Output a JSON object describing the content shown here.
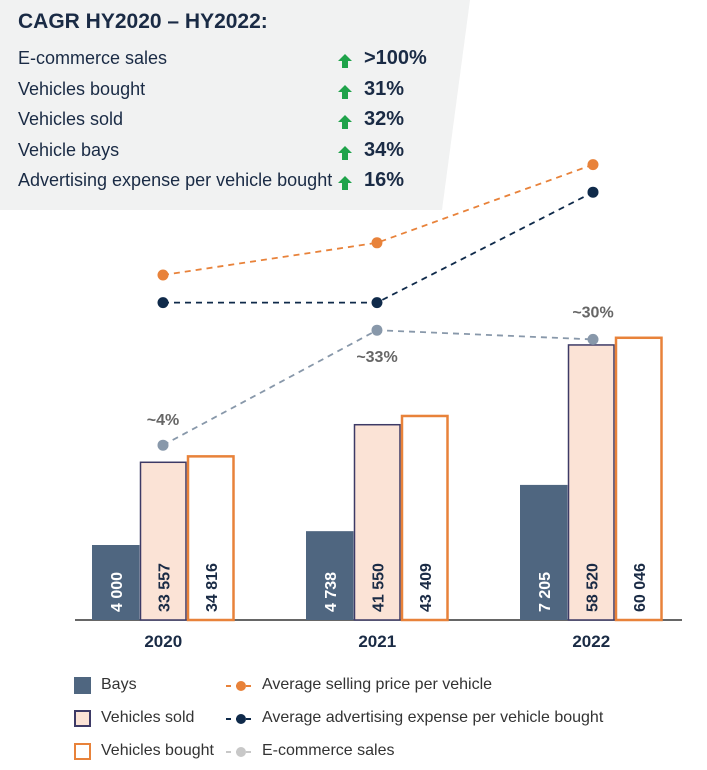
{
  "cagr_box": {
    "title": "CAGR HY2020 – HY2022:",
    "rows": [
      {
        "label": "E-commerce sales",
        "value": ">100%"
      },
      {
        "label": "Vehicles bought",
        "value": "31%"
      },
      {
        "label": "Vehicles sold",
        "value": "32%"
      },
      {
        "label": "Vehicle bays",
        "value": "34%"
      },
      {
        "label": "Advertising expense per vehicle bought",
        "value": "16%"
      }
    ]
  },
  "colors": {
    "bays": "#4f6680",
    "sold_fill": "#fbe3d6",
    "sold_border": "#3d3a66",
    "bought_border": "#e8823a",
    "orange": "#e8823a",
    "navy": "#0f2a4a",
    "gray": "#8898aa",
    "green": "#1fa34a"
  },
  "chart_data": {
    "type": "bar",
    "categories": [
      "2020",
      "2021",
      "2022"
    ],
    "series": [
      {
        "name": "Bays",
        "values": [
          4000,
          4738,
          7205
        ],
        "labels": [
          "4 000",
          "4 738",
          "7 205"
        ]
      },
      {
        "name": "Vehicles sold",
        "values": [
          33557,
          41550,
          58520
        ],
        "labels": [
          "33 557",
          "41 550",
          "58 520"
        ]
      },
      {
        "name": "Vehicles bought",
        "values": [
          34816,
          43409,
          60046
        ],
        "labels": [
          "34 816",
          "43 409",
          "60 046"
        ]
      }
    ],
    "lines": [
      {
        "name": "Average selling price per vehicle",
        "relative_values": [
          75,
          82,
          99
        ]
      },
      {
        "name": "Average advertising expense per vehicle bought",
        "relative_values": [
          69,
          69,
          93
        ]
      },
      {
        "name": "E-commerce sales",
        "relative_values": [
          38,
          63,
          61
        ],
        "labels": [
          "~4%",
          "~33%",
          "~30%"
        ]
      }
    ],
    "legend": {
      "placement": "bottom",
      "entries": [
        "Bays",
        "Vehicles sold",
        "Vehicles bought",
        "Average selling price per vehicle",
        "Average advertising expense per vehicle bought",
        "E-commerce sales"
      ]
    },
    "grid": false
  }
}
